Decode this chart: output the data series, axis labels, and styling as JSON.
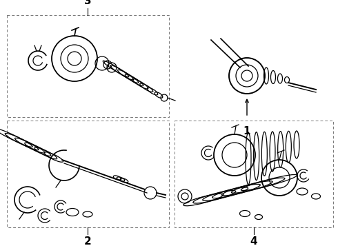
{
  "bg_color": "#ffffff",
  "text_color": "#000000",
  "fig_width": 4.9,
  "fig_height": 3.6,
  "dpi": 100,
  "lw": 0.9,
  "font_size": 11
}
